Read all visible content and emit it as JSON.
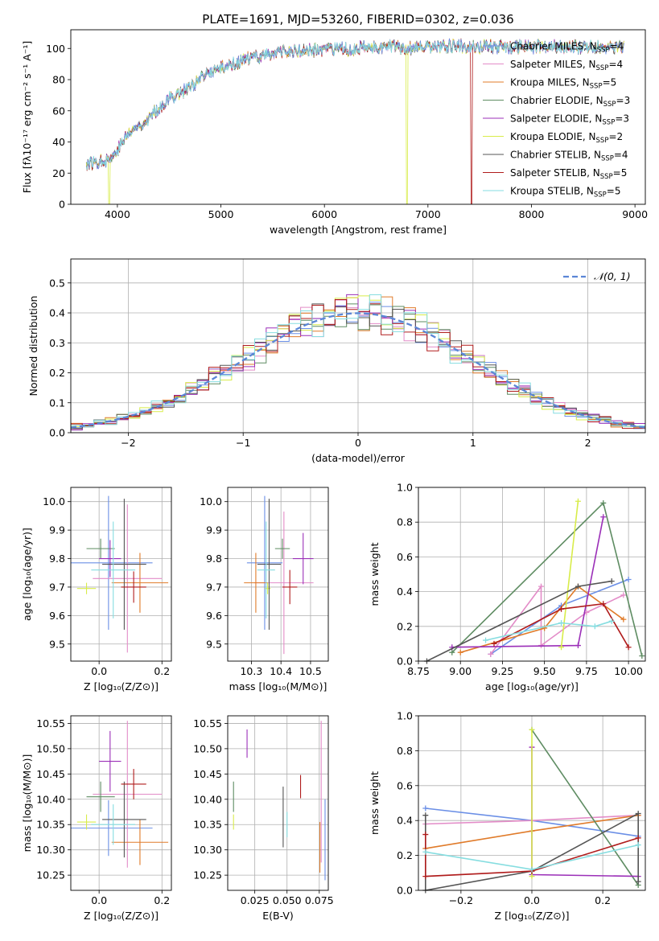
{
  "figure": {
    "title": "PLATE=1691, MJD=53260, FIBERID=0302, z=0.036"
  },
  "colors": {
    "Chabrier MILES": "#6b8fe6",
    "Salpeter MILES": "#e38cc8",
    "Kroupa MILES": "#e07b2a",
    "Chabrier ELODIE": "#5e8c62",
    "Salpeter ELODIE": "#9b2fb8",
    "Kroupa ELODIE": "#d8ec4a",
    "Chabrier STELIB": "#555555",
    "Salpeter STELIB": "#b01c1c",
    "Kroupa STELIB": "#86dde0"
  },
  "chart_data": [
    {
      "id": "spectrum",
      "type": "line",
      "title": "PLATE=1691, MJD=53260, FIBERID=0302, z=0.036",
      "xlabel": "wavelength [Angstrom, rest frame]",
      "ylabel": "Flux [fλ10⁻¹⁷ erg cm⁻² s⁻¹ A⁻¹]",
      "xlim": [
        3550,
        9100
      ],
      "ylim": [
        0,
        112
      ],
      "xticks": [
        4000,
        5000,
        6000,
        7000,
        8000,
        9000
      ],
      "yticks": [
        0,
        20,
        40,
        60,
        80,
        100
      ],
      "grid": false,
      "legend_position": "right",
      "legend": [
        {
          "name": "Chabrier MILES",
          "nssp": "4"
        },
        {
          "name": "Salpeter MILES",
          "nssp": "4"
        },
        {
          "name": "Kroupa MILES",
          "nssp": "5"
        },
        {
          "name": "Chabrier ELODIE",
          "nssp": "3"
        },
        {
          "name": "Salpeter ELODIE",
          "nssp": "3"
        },
        {
          "name": "Kroupa ELODIE",
          "nssp": "2"
        },
        {
          "name": "Chabrier STELIB",
          "nssp": "4"
        },
        {
          "name": "Salpeter STELIB",
          "nssp": "5"
        },
        {
          "name": "Kroupa STELIB",
          "nssp": "5"
        }
      ],
      "continuum": {
        "x": [
          3700,
          3850,
          3950,
          4100,
          4300,
          4500,
          4700,
          4900,
          5100,
          5300,
          5500,
          5700,
          5900,
          6100,
          6300,
          6500,
          6700,
          6900,
          7100,
          7300,
          7450
        ],
        "y": [
          26,
          28,
          30,
          45,
          55,
          68,
          75,
          85,
          90,
          94,
          97,
          98,
          99,
          99,
          100,
          101,
          101,
          100,
          101,
          102,
          101
        ]
      },
      "drops": [
        {
          "series": "Kroupa ELODIE",
          "x": 3920
        },
        {
          "series": "Kroupa ELODIE",
          "x": 6800
        },
        {
          "series": "Salpeter STELIB",
          "x": 7420
        }
      ]
    },
    {
      "id": "residuals",
      "type": "histogram",
      "xlabel": "(data-model)/error",
      "ylabel": "Normed distribution",
      "xlim": [
        -2.5,
        2.5
      ],
      "ylim": [
        0,
        0.58
      ],
      "xticks": [
        -2,
        -1,
        0,
        1,
        2
      ],
      "yticks": [
        0.0,
        0.1,
        0.2,
        0.3,
        0.4,
        0.5
      ],
      "grid": true,
      "legend_position": "top-right",
      "legend": [
        "𝒩(0, 1)"
      ],
      "reference_curve": "N(0,1)",
      "bin_width": 0.1
    },
    {
      "id": "age-vs-Z",
      "type": "errorbar",
      "xlabel": "Z [log₁₀(Z/Z⊙)]",
      "ylabel": "age  [log₁₀(age/yr)]",
      "xlim": [
        -0.09,
        0.23
      ],
      "ylim": [
        9.44,
        10.05
      ],
      "xticks": [
        0.0,
        0.2
      ],
      "yticks": [
        9.5,
        9.6,
        9.7,
        9.8,
        9.9,
        10.0
      ],
      "grid": true,
      "points": [
        {
          "series": "Chabrier MILES",
          "x": 0.03,
          "xerr": 0.14,
          "y": 9.785,
          "yerr": 0.235
        },
        {
          "series": "Salpeter MILES",
          "x": 0.09,
          "xerr": 0.11,
          "y": 9.73,
          "yerr": 0.26
        },
        {
          "series": "Kroupa MILES",
          "x": 0.13,
          "xerr": 0.09,
          "y": 9.715,
          "yerr": 0.105
        },
        {
          "series": "Chabrier ELODIE",
          "x": 0.005,
          "xerr": 0.045,
          "y": 9.835,
          "yerr": 0.035
        },
        {
          "series": "Salpeter ELODIE",
          "x": 0.035,
          "xerr": 0.035,
          "y": 9.8,
          "yerr": 0.065
        },
        {
          "series": "Kroupa ELODIE",
          "x": -0.04,
          "xerr": 0.03,
          "y": 9.695,
          "yerr": 0.02
        },
        {
          "series": "Chabrier STELIB",
          "x": 0.08,
          "xerr": 0.07,
          "y": 9.78,
          "yerr": 0.23
        },
        {
          "series": "Salpeter STELIB",
          "x": 0.11,
          "xerr": 0.04,
          "y": 9.7,
          "yerr": 0.055
        },
        {
          "series": "Kroupa STELIB",
          "x": 0.045,
          "xerr": 0.07,
          "y": 9.76,
          "yerr": 0.17
        }
      ]
    },
    {
      "id": "age-vs-mass",
      "type": "errorbar",
      "xlabel": "mass [log₁₀(M/M⊙)]",
      "ylabel": "",
      "xlim": [
        10.22,
        10.56
      ],
      "ylim": [
        9.44,
        10.05
      ],
      "xticks": [
        10.3,
        10.4,
        10.5
      ],
      "yticks": [
        9.5,
        9.6,
        9.7,
        9.8,
        9.9,
        10.0
      ],
      "grid": true,
      "points": [
        {
          "series": "Chabrier MILES",
          "x": 10.345,
          "xerr": 0.06,
          "y": 9.785,
          "yerr": 0.235
        },
        {
          "series": "Salpeter MILES",
          "x": 10.41,
          "xerr": 0.1,
          "y": 9.715,
          "yerr": 0.25
        },
        {
          "series": "Kroupa MILES",
          "x": 10.315,
          "xerr": 0.04,
          "y": 9.715,
          "yerr": 0.105
        },
        {
          "series": "Chabrier ELODIE",
          "x": 10.405,
          "xerr": 0.025,
          "y": 9.835,
          "yerr": 0.035
        },
        {
          "series": "Salpeter ELODIE",
          "x": 10.475,
          "xerr": 0.035,
          "y": 9.8,
          "yerr": 0.09
        },
        {
          "series": "Kroupa ELODIE",
          "x": 10.355,
          "xerr": 0.01,
          "y": 9.695,
          "yerr": 0.02
        },
        {
          "series": "Chabrier STELIB",
          "x": 10.36,
          "xerr": 0.04,
          "y": 9.78,
          "yerr": 0.23
        },
        {
          "series": "Salpeter STELIB",
          "x": 10.43,
          "xerr": 0.025,
          "y": 9.7,
          "yerr": 0.06
        },
        {
          "series": "Kroupa STELIB",
          "x": 10.35,
          "xerr": 0.03,
          "y": 9.76,
          "yerr": 0.17
        }
      ]
    },
    {
      "id": "weight-vs-age",
      "type": "line",
      "xlabel": "age  [log₁₀(age/yr)]",
      "ylabel": "mass weight",
      "xlim": [
        8.75,
        10.1
      ],
      "ylim": [
        0,
        1.0
      ],
      "xticks": [
        8.75,
        9.0,
        9.25,
        9.5,
        9.75,
        10.0
      ],
      "yticks": [
        0.0,
        0.2,
        0.4,
        0.6,
        0.8,
        1.0
      ],
      "grid": true,
      "series": [
        {
          "series": "Chabrier MILES",
          "x": [
            9.18,
            9.6,
            10.0
          ],
          "y": [
            0.04,
            0.32,
            0.47
          ]
        },
        {
          "series": "Salpeter MILES",
          "x": [
            9.18,
            9.48,
            9.48,
            9.75,
            9.97
          ],
          "y": [
            0.04,
            0.43,
            0.09,
            0.28,
            0.38
          ]
        },
        {
          "series": "Kroupa MILES",
          "x": [
            9.0,
            9.5,
            9.7,
            9.97
          ],
          "y": [
            0.05,
            0.19,
            0.43,
            0.24
          ]
        },
        {
          "series": "Chabrier ELODIE",
          "x": [
            8.95,
            9.85,
            10.08
          ],
          "y": [
            0.05,
            0.91,
            0.03
          ]
        },
        {
          "series": "Salpeter ELODIE",
          "x": [
            8.95,
            9.7,
            9.85
          ],
          "y": [
            0.08,
            0.09,
            0.83
          ]
        },
        {
          "series": "Kroupa ELODIE",
          "x": [
            9.6,
            9.7
          ],
          "y": [
            0.08,
            0.92
          ]
        },
        {
          "series": "Chabrier STELIB",
          "x": [
            8.8,
            9.7,
            9.9
          ],
          "y": [
            0.0,
            0.43,
            0.46
          ]
        },
        {
          "series": "Salpeter STELIB",
          "x": [
            9.2,
            9.6,
            9.85,
            10.0
          ],
          "y": [
            0.1,
            0.3,
            0.33,
            0.08
          ]
        },
        {
          "series": "Kroupa STELIB",
          "x": [
            9.15,
            9.6,
            9.8,
            9.9
          ],
          "y": [
            0.12,
            0.22,
            0.2,
            0.23
          ]
        }
      ]
    },
    {
      "id": "mass-vs-Z",
      "type": "errorbar",
      "xlabel": "Z [log₁₀(Z/Z⊙)]",
      "ylabel": "mass [log₁₀(M/M⊙)]",
      "xlim": [
        -0.09,
        0.23
      ],
      "ylim": [
        10.22,
        10.565
      ],
      "xticks": [
        0.0,
        0.2
      ],
      "yticks": [
        10.25,
        10.3,
        10.35,
        10.4,
        10.45,
        10.5,
        10.55
      ],
      "grid": true,
      "points": [
        {
          "series": "Chabrier MILES",
          "x": 0.03,
          "xerr": 0.14,
          "y": 10.343,
          "yerr": 0.055
        },
        {
          "series": "Salpeter MILES",
          "x": 0.09,
          "xerr": 0.11,
          "y": 10.41,
          "yerr": 0.145
        },
        {
          "series": "Kroupa MILES",
          "x": 0.13,
          "xerr": 0.09,
          "y": 10.315,
          "yerr": 0.045
        },
        {
          "series": "Chabrier ELODIE",
          "x": 0.005,
          "xerr": 0.045,
          "y": 10.405,
          "yerr": 0.03
        },
        {
          "series": "Salpeter ELODIE",
          "x": 0.035,
          "xerr": 0.035,
          "y": 10.475,
          "yerr": 0.06
        },
        {
          "series": "Kroupa ELODIE",
          "x": -0.04,
          "xerr": 0.03,
          "y": 10.355,
          "yerr": 0.015
        },
        {
          "series": "Chabrier STELIB",
          "x": 0.08,
          "xerr": 0.07,
          "y": 10.36,
          "yerr": 0.075
        },
        {
          "series": "Salpeter STELIB",
          "x": 0.11,
          "xerr": 0.04,
          "y": 10.43,
          "yerr": 0.03
        },
        {
          "series": "Kroupa STELIB",
          "x": 0.045,
          "xerr": 0.07,
          "y": 10.35,
          "yerr": 0.04
        }
      ]
    },
    {
      "id": "mass-vs-ebv",
      "type": "errorbar",
      "xlabel": "E(B-V)",
      "ylabel": "",
      "xlim": [
        0.004,
        0.082
      ],
      "ylim": [
        10.22,
        10.565
      ],
      "xticks": [
        0.025,
        0.05,
        0.075
      ],
      "xticklabels": [
        "0.025",
        "0.050",
        "0.075"
      ],
      "yticks": [
        10.25,
        10.3,
        10.35,
        10.4,
        10.45,
        10.5,
        10.55
      ],
      "grid": true,
      "points": [
        {
          "series": "Chabrier ELODIE",
          "x": 0.0085,
          "y": 10.405,
          "yerr": 0.03
        },
        {
          "series": "Kroupa ELODIE",
          "x": 0.0085,
          "y": 10.355,
          "yerr": 0.015
        },
        {
          "series": "Salpeter ELODIE",
          "x": 0.019,
          "y": 10.51,
          "yerr": 0.028
        },
        {
          "series": "Chabrier STELIB",
          "x": 0.047,
          "y": 10.365,
          "yerr": 0.06
        },
        {
          "series": "Kroupa STELIB",
          "x": 0.05,
          "y": 10.35,
          "yerr": 0.025
        },
        {
          "series": "Salpeter STELIB",
          "x": 0.0605,
          "y": 10.425,
          "yerr": 0.023
        },
        {
          "series": "Kroupa MILES",
          "x": 0.0755,
          "y": 10.305,
          "yerr": 0.05
        },
        {
          "series": "Salpeter MILES",
          "x": 0.0765,
          "y": 10.415,
          "yerr": 0.14
        },
        {
          "series": "Chabrier MILES",
          "x": 0.0795,
          "y": 10.32,
          "yerr": 0.08
        }
      ]
    },
    {
      "id": "weight-vs-Z",
      "type": "line",
      "xlabel": "Z [log₁₀(Z/Z⊙)]",
      "ylabel": "mass weight",
      "xlim": [
        -0.32,
        0.32
      ],
      "ylim": [
        0,
        1.0
      ],
      "xticks": [
        -0.2,
        0.0,
        0.2
      ],
      "xticklabels": [
        "−0.2",
        "0.0",
        "0.2"
      ],
      "yticks": [
        0.0,
        0.2,
        0.4,
        0.6,
        0.8,
        1.0
      ],
      "grid": true,
      "series": [
        {
          "series": "Chabrier MILES",
          "x": [
            -0.3,
            0.0,
            0.3
          ],
          "y": [
            0.47,
            0.4,
            0.31
          ]
        },
        {
          "series": "Salpeter MILES",
          "x": [
            -0.3,
            0.0,
            0.3
          ],
          "y": [
            0.38,
            0.4,
            0.43
          ]
        },
        {
          "series": "Kroupa MILES",
          "x": [
            -0.3,
            0.0,
            0.3
          ],
          "y": [
            0.24,
            0.34,
            0.43
          ]
        },
        {
          "series": "Chabrier ELODIE",
          "x": [
            0.0,
            0.3
          ],
          "y": [
            0.92,
            0.03
          ]
        },
        {
          "series": "Salpeter ELODIE",
          "x": [
            0.0,
            0.0,
            0.3
          ],
          "y": [
            0.82,
            0.09,
            0.08
          ]
        },
        {
          "series": "Kroupa ELODIE",
          "x": [
            0.0,
            0.0
          ],
          "y": [
            0.92,
            0.08
          ]
        },
        {
          "series": "Chabrier STELIB",
          "x": [
            -0.3,
            -0.3,
            0.0,
            0.3,
            0.3
          ],
          "y": [
            0.43,
            0.0,
            0.11,
            0.44,
            0.05
          ]
        },
        {
          "series": "Salpeter STELIB",
          "x": [
            -0.3,
            -0.3,
            0.0,
            0.3
          ],
          "y": [
            0.32,
            0.08,
            0.11,
            0.3
          ]
        },
        {
          "series": "Kroupa STELIB",
          "x": [
            -0.3,
            0.0,
            0.3
          ],
          "y": [
            0.22,
            0.12,
            0.26
          ]
        }
      ]
    }
  ]
}
